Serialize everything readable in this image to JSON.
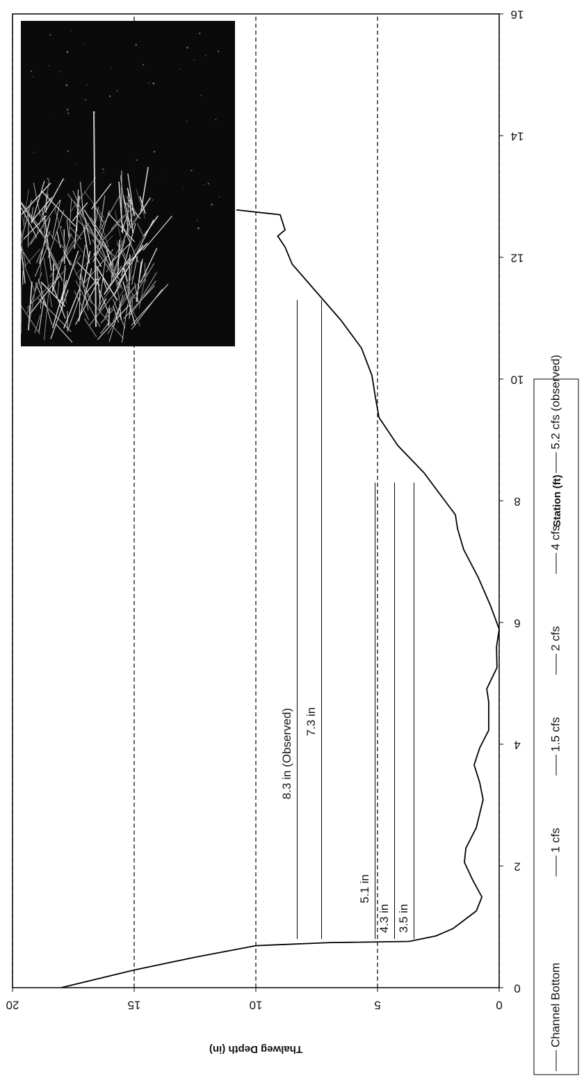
{
  "chart_data": {
    "type": "line",
    "x_label": "Station (ft)",
    "y_label": "Thalweg Depth (in)",
    "xlim": [
      0,
      16
    ],
    "xticks": [
      0,
      2,
      4,
      6,
      8,
      10,
      12,
      14,
      16
    ],
    "ylim": [
      0,
      20
    ],
    "yticks": [
      0,
      5,
      10,
      15,
      20
    ],
    "grid": true,
    "grid_style": "dashed",
    "series": [
      {
        "name": "Channel Bottom",
        "color": "#000000",
        "x": [
          0,
          0.29,
          0.5,
          0.69,
          0.74,
          0.76,
          0.85,
          0.97,
          1.26,
          1.49,
          1.77,
          2.06,
          2.29,
          2.63,
          3.09,
          3.37,
          3.66,
          3.94,
          4.23,
          4.69,
          4.91,
          5.26,
          5.6,
          5.89,
          6.29,
          6.74,
          7.2,
          7.54,
          7.77,
          8.0,
          8.46,
          8.91,
          9.37,
          9.71,
          10.06,
          10.51,
          10.97,
          11.43,
          11.89,
          12.17,
          12.35,
          12.45,
          12.7,
          12.78
        ],
        "values": [
          18,
          15,
          12.5,
          10,
          7,
          3.7,
          2.6,
          1.9,
          0.94,
          0.71,
          1.09,
          1.43,
          1.37,
          0.94,
          0.66,
          0.8,
          1.03,
          0.8,
          0.43,
          0.43,
          0.51,
          0.09,
          0.11,
          0,
          0.37,
          0.86,
          1.46,
          1.71,
          1.8,
          2.23,
          3.09,
          4.17,
          4.94,
          5.09,
          5.23,
          5.66,
          6.51,
          7.51,
          8.51,
          8.8,
          9.1,
          8.8,
          9.0,
          10.8
        ]
      },
      {
        "name": "1 cfs",
        "color": "#000000",
        "x": [
          0.8,
          8.3
        ],
        "values": [
          3.5,
          3.5
        ],
        "label": "3.5 in"
      },
      {
        "name": "1.5 cfs",
        "color": "#000000",
        "x": [
          0.8,
          8.3
        ],
        "values": [
          4.3,
          4.3
        ],
        "label": "4.3 in"
      },
      {
        "name": "2 cfs",
        "color": "#000000",
        "x": [
          0.8,
          8.3
        ],
        "values": [
          5.1,
          5.1
        ],
        "label": "5.1 in"
      },
      {
        "name": "4 cfs",
        "color": "#000000",
        "x": [
          0.8,
          11.3
        ],
        "values": [
          7.3,
          7.3
        ],
        "label": "7.3 in"
      },
      {
        "name": "5.2 cfs (observed)",
        "color": "#000000",
        "x": [
          0.8,
          11.3
        ],
        "values": [
          8.3,
          8.3
        ],
        "label": "8.3 in (Observed)"
      }
    ]
  }
}
